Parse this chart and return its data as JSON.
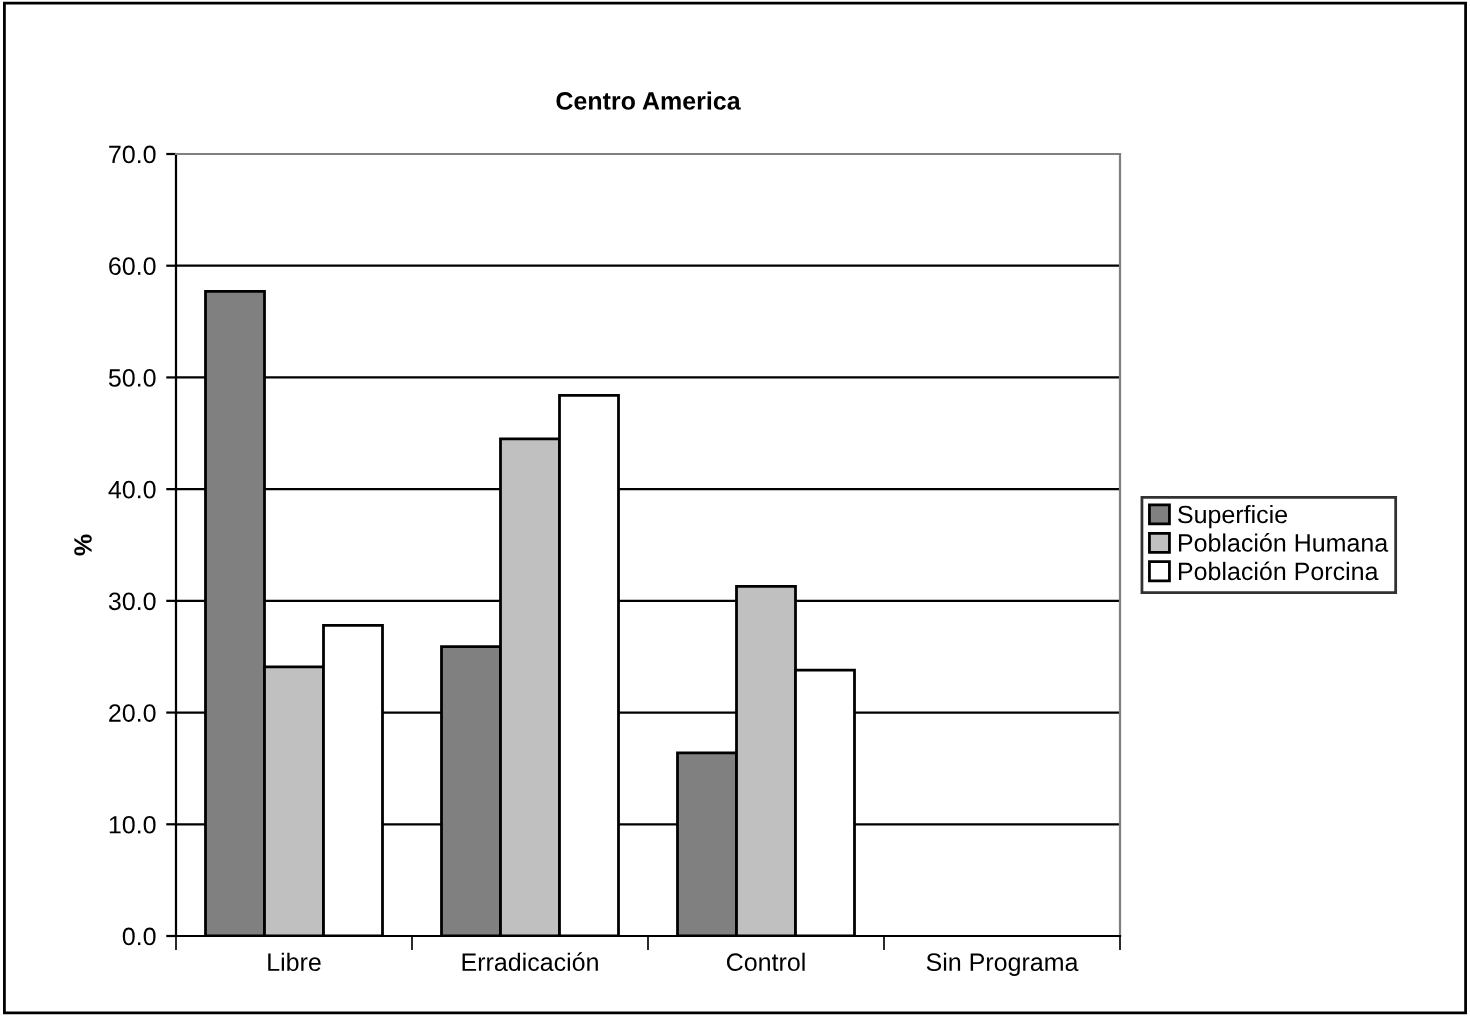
{
  "chart_data": {
    "type": "bar",
    "title": "Centro America",
    "ylabel": "%",
    "categories": [
      "Libre",
      "Erradicación",
      "Control",
      "Sin Programa"
    ],
    "series": [
      {
        "name": "Superficie",
        "color": "#808080",
        "values": [
          57.7,
          25.9,
          16.4,
          null
        ]
      },
      {
        "name": "Población Humana",
        "color": "#c0c0c0",
        "values": [
          24.1,
          44.5,
          31.3,
          null
        ]
      },
      {
        "name": "Población Porcina",
        "color": "#ffffff",
        "values": [
          27.8,
          48.4,
          23.8,
          null
        ]
      }
    ],
    "ylim": [
      0,
      70
    ],
    "yticks": [
      {
        "value": 0,
        "label": "0.0"
      },
      {
        "value": 10,
        "label": "10.0"
      },
      {
        "value": 20,
        "label": "20.0"
      },
      {
        "value": 30,
        "label": "30.0"
      },
      {
        "value": 40,
        "label": "40.0"
      },
      {
        "value": 50,
        "label": "50.0"
      },
      {
        "value": 60,
        "label": "60.0"
      },
      {
        "value": 70,
        "label": "70.0"
      }
    ],
    "grid": "y",
    "legend": "right"
  }
}
